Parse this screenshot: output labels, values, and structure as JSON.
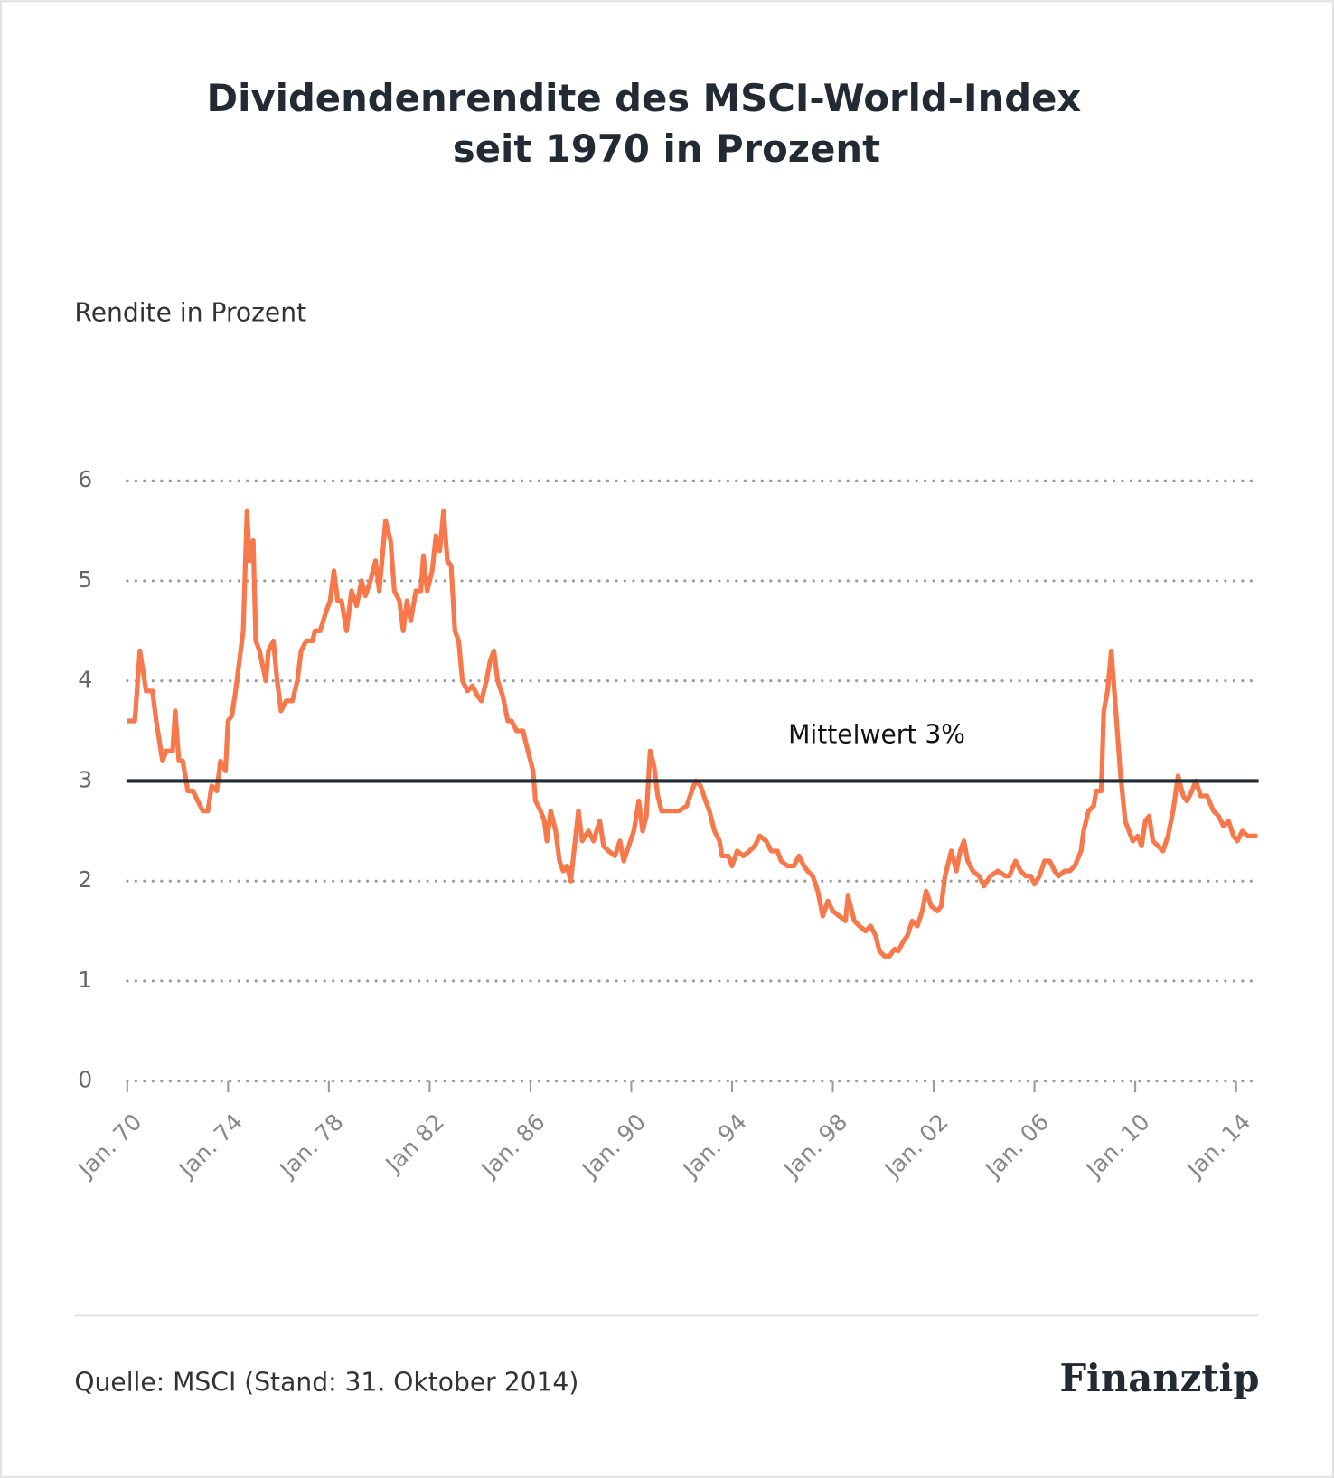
{
  "chart_data": {
    "type": "line",
    "title": [
      "Dividendenrendite des MSCI-World-Index",
      "seit 1970 in Prozent"
    ],
    "y_axis_label": "Rendite in Prozent",
    "source": "Quelle: MSCI (Stand: 31. Oktober 2014)",
    "brand": "Finanztip",
    "mean_line": {
      "value": 3,
      "label": "Mittelwert 3%"
    },
    "color": "#f7784a",
    "grid": true,
    "xlim": [
      1970,
      2014.9
    ],
    "ylim": [
      0,
      6
    ],
    "yticks": [
      0,
      1,
      2,
      3,
      4,
      5,
      6
    ],
    "xticks": [
      {
        "value": 1970,
        "label": "Jan. 70"
      },
      {
        "value": 1974,
        "label": "Jan. 74"
      },
      {
        "value": 1978,
        "label": "Jan. 78"
      },
      {
        "value": 1982,
        "label": "Jan 82"
      },
      {
        "value": 1986,
        "label": "Jan. 86"
      },
      {
        "value": 1990,
        "label": "Jan. 90"
      },
      {
        "value": 1994,
        "label": "Jan. 94"
      },
      {
        "value": 1998,
        "label": "Jan. 98"
      },
      {
        "value": 2002,
        "label": "Jan. 02"
      },
      {
        "value": 2006,
        "label": "Jan. 06"
      },
      {
        "value": 2010,
        "label": "Jan. 10"
      },
      {
        "value": 2014,
        "label": "Jan. 14"
      }
    ],
    "x": [
      1970,
      1970.3,
      1970.5,
      1970.75,
      1971,
      1971.15,
      1971.4,
      1971.55,
      1971.8,
      1971.9,
      1972.05,
      1972.2,
      1972.4,
      1972.6,
      1972.8,
      1973,
      1973.2,
      1973.35,
      1973.55,
      1973.7,
      1973.9,
      1974,
      1974.15,
      1974.3,
      1974.45,
      1974.6,
      1974.75,
      1974.85,
      1975,
      1975.1,
      1975.25,
      1975.5,
      1975.6,
      1975.8,
      1975.95,
      1976.1,
      1976.3,
      1976.55,
      1976.75,
      1976.9,
      1977.1,
      1977.35,
      1977.45,
      1977.65,
      1977.9,
      1978.05,
      1978.2,
      1978.35,
      1978.5,
      1978.7,
      1978.9,
      1979.1,
      1979.3,
      1979.45,
      1979.65,
      1979.85,
      1980,
      1980.25,
      1980.45,
      1980.6,
      1980.8,
      1980.95,
      1981.1,
      1981.25,
      1981.45,
      1981.65,
      1981.75,
      1981.9,
      1982.1,
      1982.25,
      1982.4,
      1982.55,
      1982.7,
      1982.85,
      1983,
      1983.15,
      1983.3,
      1983.5,
      1983.7,
      1983.9,
      1984.05,
      1984.25,
      1984.4,
      1984.55,
      1984.7,
      1984.9,
      1985.1,
      1985.25,
      1985.45,
      1985.7,
      1985.9,
      1986.1,
      1986.2,
      1986.4,
      1986.55,
      1986.65,
      1986.8,
      1987,
      1987.15,
      1987.3,
      1987.45,
      1987.6,
      1987.9,
      1988.05,
      1988.3,
      1988.5,
      1988.75,
      1988.9,
      1989.1,
      1989.35,
      1989.55,
      1989.7,
      1989.9,
      1990.1,
      1990.3,
      1990.45,
      1990.6,
      1990.75,
      1990.9,
      1991.05,
      1991.2,
      1991.5,
      1991.9,
      1992.2,
      1992.4,
      1992.55,
      1992.75,
      1992.95,
      1993.1,
      1993.3,
      1993.5,
      1993.6,
      1993.85,
      1994,
      1994.2,
      1994.45,
      1994.7,
      1994.9,
      1995.1,
      1995.35,
      1995.55,
      1995.8,
      1995.95,
      1996.2,
      1996.45,
      1996.65,
      1996.85,
      1997,
      1997.2,
      1997.4,
      1997.6,
      1997.8,
      1998,
      1998.25,
      1998.5,
      1998.6,
      1998.85,
      1999.05,
      1999.3,
      1999.5,
      1999.7,
      1999.85,
      2000.05,
      2000.25,
      2000.45,
      2000.6,
      2000.8,
      2000.95,
      2001.15,
      2001.35,
      2001.55,
      2001.7,
      2001.9,
      2002.15,
      2002.3,
      2002.45,
      2002.7,
      2002.9,
      2003.05,
      2003.2,
      2003.35,
      2003.55,
      2003.8,
      2004,
      2004.25,
      2004.55,
      2004.85,
      2005,
      2005.25,
      2005.45,
      2005.65,
      2005.85,
      2006,
      2006.2,
      2006.4,
      2006.6,
      2006.8,
      2006.95,
      2007.2,
      2007.4,
      2007.6,
      2007.85,
      2007.95,
      2008.15,
      2008.35,
      2008.45,
      2008.65,
      2008.75,
      2008.9,
      2009.05,
      2009.2,
      2009.4,
      2009.6,
      2009.75,
      2009.9,
      2010.1,
      2010.25,
      2010.4,
      2010.55,
      2010.7,
      2010.9,
      2011.1,
      2011.3,
      2011.5,
      2011.7,
      2011.9,
      2012.05,
      2012.25,
      2012.4,
      2012.6,
      2012.85,
      2013.1,
      2013.3,
      2013.5,
      2013.7,
      2013.9,
      2014.05,
      2014.25,
      2014.45,
      2014.65,
      2014.85
    ],
    "values": [
      3.6,
      3.6,
      4.3,
      3.9,
      3.9,
      3.6,
      3.2,
      3.3,
      3.3,
      3.7,
      3.2,
      3.2,
      2.9,
      2.9,
      2.8,
      2.7,
      2.7,
      2.95,
      2.9,
      3.2,
      3.1,
      3.6,
      3.65,
      3.9,
      4.2,
      4.5,
      5.7,
      5.2,
      5.4,
      4.4,
      4.3,
      4.0,
      4.3,
      4.4,
      4.0,
      3.7,
      3.8,
      3.8,
      4.0,
      4.3,
      4.4,
      4.4,
      4.5,
      4.5,
      4.7,
      4.8,
      5.1,
      4.8,
      4.8,
      4.5,
      4.9,
      4.75,
      5.0,
      4.85,
      5.0,
      5.2,
      4.9,
      5.6,
      5.4,
      4.9,
      4.8,
      4.5,
      4.8,
      4.6,
      4.9,
      4.9,
      5.25,
      4.9,
      5.1,
      5.45,
      5.3,
      5.7,
      5.2,
      5.15,
      4.5,
      4.4,
      4.0,
      3.9,
      3.95,
      3.85,
      3.8,
      4.0,
      4.2,
      4.3,
      4.0,
      3.85,
      3.6,
      3.6,
      3.5,
      3.5,
      3.3,
      3.1,
      2.8,
      2.7,
      2.6,
      2.4,
      2.7,
      2.5,
      2.2,
      2.1,
      2.15,
      2.0,
      2.7,
      2.4,
      2.5,
      2.4,
      2.6,
      2.35,
      2.3,
      2.25,
      2.4,
      2.2,
      2.35,
      2.5,
      2.8,
      2.5,
      2.65,
      3.3,
      3.15,
      2.85,
      2.7,
      2.7,
      2.7,
      2.75,
      2.9,
      3.0,
      2.95,
      2.8,
      2.7,
      2.5,
      2.4,
      2.25,
      2.25,
      2.15,
      2.3,
      2.25,
      2.3,
      2.35,
      2.45,
      2.4,
      2.3,
      2.3,
      2.2,
      2.15,
      2.15,
      2.25,
      2.15,
      2.1,
      2.05,
      1.9,
      1.65,
      1.8,
      1.7,
      1.65,
      1.6,
      1.85,
      1.6,
      1.55,
      1.5,
      1.55,
      1.45,
      1.3,
      1.25,
      1.25,
      1.32,
      1.3,
      1.4,
      1.45,
      1.6,
      1.55,
      1.7,
      1.9,
      1.75,
      1.7,
      1.75,
      2.05,
      2.3,
      2.1,
      2.3,
      2.4,
      2.2,
      2.1,
      2.05,
      1.95,
      2.05,
      2.1,
      2.05,
      2.05,
      2.2,
      2.1,
      2.05,
      2.05,
      1.97,
      2.05,
      2.2,
      2.2,
      2.1,
      2.05,
      2.1,
      2.1,
      2.15,
      2.3,
      2.5,
      2.7,
      2.75,
      2.9,
      2.9,
      3.7,
      3.9,
      4.3,
      3.8,
      3.1,
      2.6,
      2.5,
      2.4,
      2.45,
      2.35,
      2.6,
      2.65,
      2.4,
      2.35,
      2.3,
      2.45,
      2.7,
      3.05,
      2.85,
      2.8,
      2.9,
      3.0,
      2.85,
      2.85,
      2.7,
      2.65,
      2.55,
      2.6,
      2.45,
      2.4,
      2.5,
      2.45,
      2.45,
      2.45
    ]
  }
}
